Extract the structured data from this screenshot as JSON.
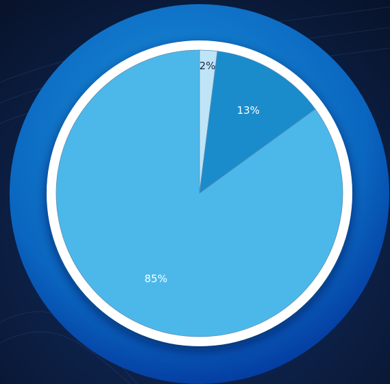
{
  "chart_data": {
    "type": "pie",
    "values": [
      2,
      13,
      85
    ],
    "value_labels": [
      "2%",
      "13%",
      "85%"
    ],
    "colors": [
      "#bfe3f7",
      "#1a8ccb",
      "#4cb8ea"
    ],
    "start_angle": 0,
    "direction": "clockwise"
  }
}
